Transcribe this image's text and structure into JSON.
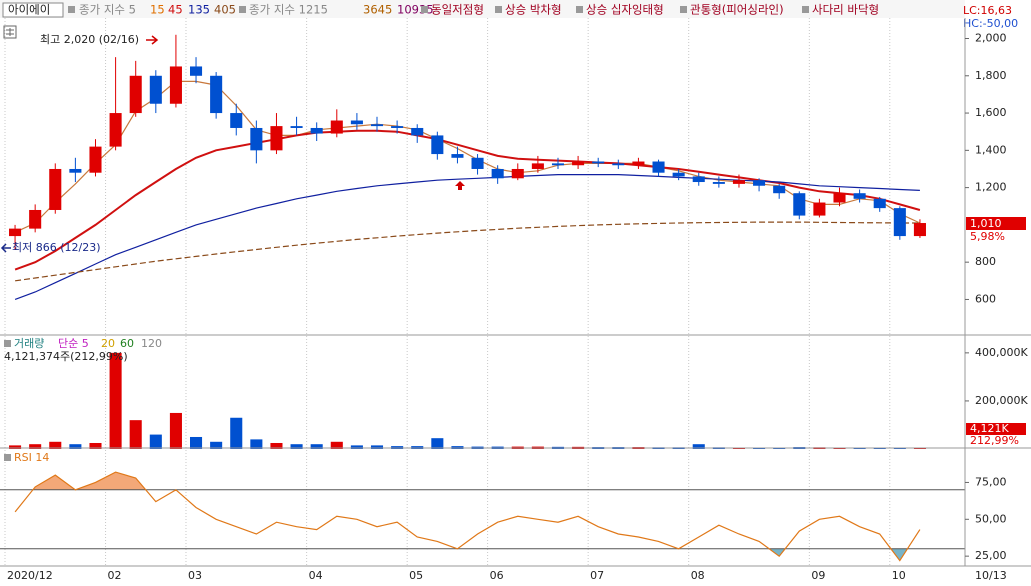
{
  "header": {
    "stock": "아이에이",
    "ma_title": "종가 지수 5",
    "long_title": "종가 지수 1215",
    "long_ma": [
      "3645",
      "10935"
    ],
    "patterns": [
      "동일저점형",
      "상승 박차형",
      "상승 십자잉태형",
      "관통형(피어싱라인)",
      "사다리 바닥형"
    ],
    "lc": "LC:16,63",
    "hc": "HC:-50,00",
    "x_end_label": "10/13"
  },
  "chart_data": [
    {
      "type": "candlestick",
      "annotations": {
        "high": "최고 2,020 (02/16)",
        "low": "최저 866 (12/23)",
        "last_price": "1,010",
        "last_change": "5,98%"
      },
      "categories": [
        "2020/12",
        null,
        null,
        null,
        null,
        "02",
        null,
        null,
        null,
        "03",
        null,
        null,
        null,
        null,
        null,
        "04",
        null,
        null,
        null,
        null,
        "05",
        null,
        null,
        null,
        "06",
        null,
        null,
        null,
        null,
        "07",
        null,
        null,
        null,
        null,
        "08",
        null,
        null,
        null,
        null,
        null,
        "09",
        null,
        null,
        null,
        "10",
        null
      ],
      "open": [
        940,
        980,
        1080,
        1300,
        1280,
        1420,
        1600,
        1800,
        1650,
        1850,
        1800,
        1600,
        1520,
        1400,
        1530,
        1520,
        1490,
        1560,
        1540,
        1530,
        1520,
        1480,
        1380,
        1360,
        1300,
        1250,
        1300,
        1330,
        1320,
        1340,
        1330,
        1320,
        1340,
        1280,
        1260,
        1230,
        1220,
        1240,
        1210,
        1170,
        1050,
        1120,
        1170,
        1140,
        1090,
        940
      ],
      "high": [
        1000,
        1110,
        1330,
        1360,
        1460,
        1900,
        1880,
        1830,
        2020,
        1900,
        1820,
        1650,
        1560,
        1600,
        1580,
        1550,
        1620,
        1600,
        1580,
        1560,
        1540,
        1500,
        1420,
        1380,
        1320,
        1330,
        1370,
        1360,
        1370,
        1360,
        1350,
        1360,
        1350,
        1300,
        1280,
        1260,
        1270,
        1250,
        1220,
        1180,
        1140,
        1200,
        1190,
        1150,
        1100,
        1030
      ],
      "low": [
        866,
        960,
        1060,
        1230,
        1260,
        1400,
        1580,
        1600,
        1630,
        1760,
        1570,
        1480,
        1330,
        1380,
        1480,
        1450,
        1470,
        1510,
        1500,
        1490,
        1440,
        1350,
        1330,
        1270,
        1220,
        1240,
        1280,
        1300,
        1300,
        1310,
        1300,
        1300,
        1260,
        1240,
        1210,
        1200,
        1200,
        1180,
        1140,
        1030,
        1040,
        1100,
        1120,
        1070,
        920,
        930
      ],
      "close": [
        980,
        1080,
        1300,
        1280,
        1420,
        1600,
        1800,
        1650,
        1850,
        1800,
        1600,
        1520,
        1400,
        1530,
        1520,
        1490,
        1560,
        1540,
        1530,
        1520,
        1480,
        1380,
        1360,
        1300,
        1250,
        1300,
        1330,
        1320,
        1340,
        1330,
        1320,
        1340,
        1280,
        1260,
        1230,
        1220,
        1240,
        1210,
        1170,
        1050,
        1120,
        1170,
        1140,
        1090,
        940,
        1010
      ],
      "up_color": "#e00000",
      "down_color": "#0050d0",
      "series": [
        {
          "name": "15",
          "color": "#c8783c",
          "values": [
            960,
            1010,
            1120,
            1220,
            1330,
            1430,
            1610,
            1680,
            1770,
            1770,
            1750,
            1640,
            1510,
            1480,
            1480,
            1510,
            1520,
            1530,
            1540,
            1530,
            1510,
            1460,
            1410,
            1350,
            1300,
            1280,
            1290,
            1320,
            1330,
            1330,
            1330,
            1330,
            1310,
            1290,
            1260,
            1240,
            1230,
            1220,
            1210,
            1140,
            1110,
            1110,
            1140,
            1130,
            1060,
            1010
          ]
        },
        {
          "name": "45",
          "color": "#d01010",
          "values": [
            760,
            800,
            860,
            930,
            1000,
            1080,
            1160,
            1230,
            1300,
            1360,
            1400,
            1420,
            1440,
            1460,
            1480,
            1495,
            1500,
            1505,
            1505,
            1500,
            1480,
            1460,
            1430,
            1400,
            1370,
            1355,
            1350,
            1345,
            1340,
            1335,
            1330,
            1320,
            1310,
            1300,
            1285,
            1270,
            1255,
            1240,
            1225,
            1200,
            1180,
            1170,
            1160,
            1140,
            1110,
            1080
          ]
        },
        {
          "name": "135",
          "color": "#1020a0",
          "values": [
            600,
            640,
            690,
            740,
            790,
            840,
            880,
            920,
            960,
            1000,
            1030,
            1060,
            1090,
            1115,
            1140,
            1160,
            1180,
            1195,
            1210,
            1220,
            1230,
            1240,
            1245,
            1250,
            1255,
            1260,
            1265,
            1270,
            1270,
            1270,
            1270,
            1265,
            1260,
            1255,
            1250,
            1245,
            1240,
            1235,
            1230,
            1220,
            1210,
            1205,
            1200,
            1195,
            1190,
            1185
          ]
        },
        {
          "name": "405",
          "color": "#8a4a1a",
          "values": [
            700,
            715,
            730,
            745,
            760,
            775,
            790,
            805,
            818,
            831,
            844,
            856,
            868,
            880,
            891,
            902,
            912,
            922,
            931,
            940,
            948,
            956,
            963,
            970,
            976,
            982,
            987,
            992,
            996,
            1000,
            1003,
            1006,
            1008,
            1010,
            1012,
            1013,
            1014,
            1015,
            1015,
            1015,
            1014,
            1013,
            1012,
            1011,
            1010,
            1010
          ]
        }
      ],
      "ylim": [
        420,
        2110
      ],
      "yticks": [
        600,
        800,
        {
          "value": 1200,
          "label": "1,200"
        },
        {
          "value": 1400,
          "label": "1,400"
        },
        {
          "value": 1600,
          "label": "1,600"
        },
        {
          "value": 1800,
          "label": "1,800"
        },
        {
          "value": 2000,
          "label": "2,000"
        }
      ]
    },
    {
      "type": "bar",
      "title": "거래량",
      "ma_legend": [
        "단순 5",
        "20",
        "60",
        "120"
      ],
      "summary": "4,121,374주(212,99%)",
      "last_label": "4,121K",
      "last_change": "212,99%",
      "values": [
        15000,
        20000,
        30000,
        20000,
        25000,
        400000,
        120000,
        60000,
        150000,
        50000,
        30000,
        130000,
        40000,
        25000,
        20000,
        20000,
        30000,
        15000,
        15000,
        12000,
        12000,
        45000,
        12000,
        10000,
        10000,
        10000,
        10000,
        9000,
        9000,
        8000,
        8000,
        8000,
        7000,
        7000,
        20000,
        7000,
        6000,
        6000,
        6000,
        8000,
        7000,
        6000,
        6000,
        5000,
        6000,
        4121
      ],
      "ylim": [
        0,
        466000
      ],
      "yticks": [
        {
          "value": 200000,
          "label": "200,000K"
        },
        {
          "value": 400000,
          "label": "400,000K"
        }
      ]
    },
    {
      "type": "line",
      "title": "RSI 14",
      "color": "#e07818",
      "values": [
        55,
        72,
        80,
        70,
        75,
        82,
        78,
        62,
        70,
        58,
        50,
        45,
        40,
        48,
        45,
        43,
        52,
        50,
        45,
        48,
        38,
        35,
        30,
        40,
        48,
        52,
        50,
        48,
        52,
        45,
        40,
        38,
        35,
        30,
        38,
        46,
        40,
        35,
        25,
        42,
        50,
        52,
        45,
        40,
        22,
        43
      ],
      "levels": [
        70,
        30
      ],
      "level_fills": [
        "#f3a878",
        "#78b4c8"
      ],
      "ylim": [
        19,
        97
      ],
      "yticks": [
        {
          "value": 25,
          "label": "25,00"
        },
        {
          "value": 50,
          "label": "50,00"
        },
        {
          "value": 75,
          "label": "75,00"
        }
      ]
    }
  ]
}
